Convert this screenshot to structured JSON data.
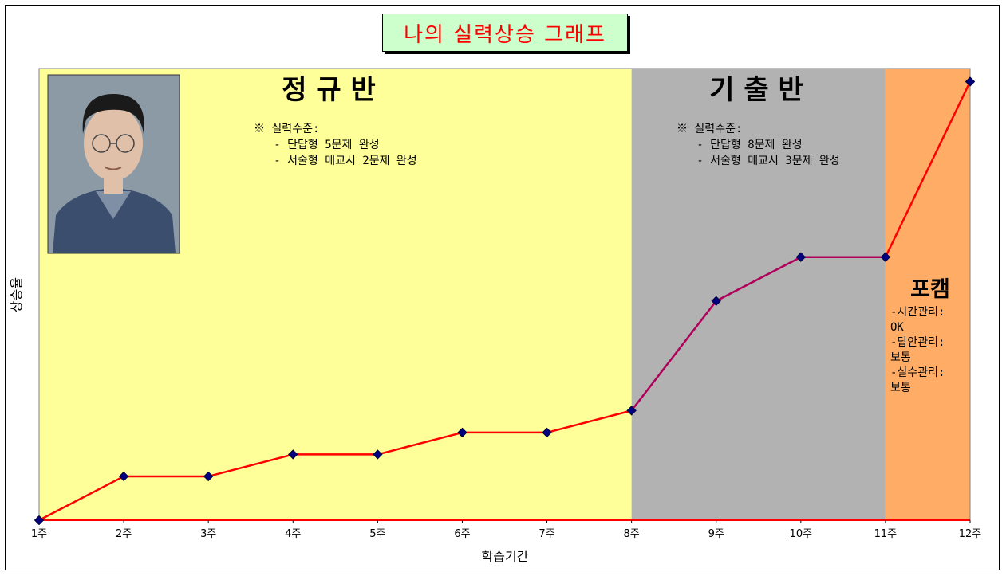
{
  "title": "나의 실력상승 그래프",
  "chart_data": {
    "type": "line",
    "title": "나의 실력상승 그래프",
    "xlabel": "학습기간",
    "ylabel": "상승율",
    "categories": [
      "1주",
      "2주",
      "3주",
      "4주",
      "5주",
      "6주",
      "7주",
      "8주",
      "9주",
      "10주",
      "11주",
      "12주"
    ],
    "values": [
      0,
      2,
      2,
      3,
      3,
      4,
      4,
      5,
      10,
      12,
      12,
      20
    ],
    "ylim": [
      0,
      20.6
    ],
    "line_color": "#ff0000",
    "marker_color": "#000080",
    "legend": "none",
    "grid": false,
    "y_ticks_shown": false
  },
  "phases": [
    {
      "id": "regular",
      "name": "정 규 반",
      "color": "#ffff99",
      "start_week": 1,
      "end_week": 8,
      "notes": [
        "※ 실력수준:",
        "   - 단답형 5문제 완성",
        "   - 서술형 매교시 2문제 완성"
      ]
    },
    {
      "id": "past-exam",
      "name": "기 출 반",
      "color": "#b2b2b2",
      "start_week": 8,
      "end_week": 11,
      "notes": [
        "※ 실력수준:",
        "   - 단답형 8문제 완성",
        "   - 서술형 매교시 3문제 완성"
      ]
    },
    {
      "id": "pocam",
      "name": "포캠",
      "color": "#ffad66",
      "start_week": 11,
      "end_week": 12,
      "notes": [
        "-시간관리:",
        "OK",
        "-답안관리:",
        "보통",
        "-실수관리:",
        "보통"
      ]
    }
  ],
  "portrait": {
    "description_icon": "person-photo",
    "background": "#8c9aa6",
    "shirt_color": "#3c4e6e",
    "face_color": "#e0c0a8",
    "hair_color": "#1a1a1a"
  }
}
